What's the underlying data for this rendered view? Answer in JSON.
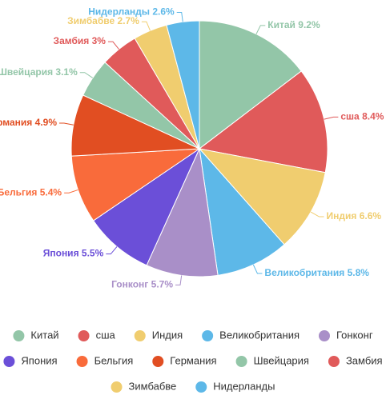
{
  "chart_data": {
    "type": "pie",
    "categories": [
      "Китай",
      "сша",
      "Индия",
      "Великобритания",
      "Гонконг",
      "Япония",
      "Бельгия",
      "Германия",
      "Швейцария",
      "Замбия",
      "Зимбабве",
      "Нидерланды"
    ],
    "values": [
      9.2,
      8.4,
      6.6,
      5.8,
      5.7,
      5.5,
      5.4,
      4.9,
      3.1,
      3,
      2.7,
      2.6
    ],
    "value_labels": [
      "9.2%",
      "8.4%",
      "6.6%",
      "5.8%",
      "5.7%",
      "5.5%",
      "5.4%",
      "4.9%",
      "3.1%",
      "3%",
      "2.7%",
      "2.6%"
    ],
    "colors": [
      "#93c6a8",
      "#e05a5a",
      "#f0cd6f",
      "#5db8e8",
      "#a98fc8",
      "#6b4fd8",
      "#f96b3b",
      "#e14e22",
      "#93c6a8",
      "#e05a5a",
      "#f0cd6f",
      "#5db8e8"
    ],
    "legend": "bottom"
  }
}
